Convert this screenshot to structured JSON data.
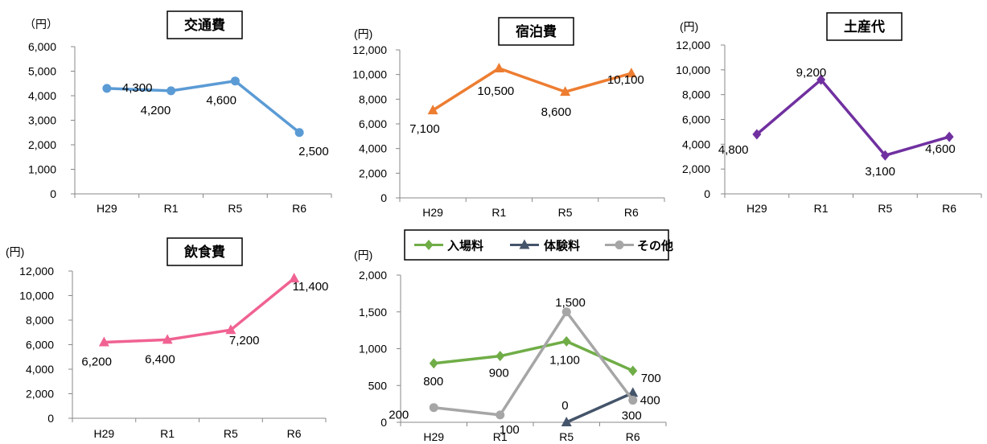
{
  "chart_data": [
    {
      "id": "transport",
      "type": "line",
      "title": "交通費",
      "unit": "（円）",
      "categories": [
        "H29",
        "R1",
        "R5",
        "R6"
      ],
      "series": [
        {
          "values": [
            4300,
            4200,
            4600,
            2500
          ],
          "labels": [
            "4,300",
            "4,200",
            "4,600",
            "2,500"
          ],
          "color": "#5b9bd5",
          "marker": "circle"
        }
      ],
      "ylim": [
        0,
        6000
      ],
      "yticks": [
        "0",
        "1,000",
        "2,000",
        "3,000",
        "4,000",
        "5,000",
        "6,000"
      ],
      "grid": false
    },
    {
      "id": "lodging",
      "type": "line",
      "title": "宿泊費",
      "unit": "(円)",
      "categories": [
        "H29",
        "R1",
        "R5",
        "R6"
      ],
      "series": [
        {
          "values": [
            7100,
            10500,
            8600,
            10100
          ],
          "labels": [
            "7,100",
            "10,500",
            "8,600",
            "10,100"
          ],
          "color": "#ed7d31",
          "marker": "triangle"
        }
      ],
      "ylim": [
        0,
        12000
      ],
      "yticks": [
        "0",
        "2,000",
        "4,000",
        "6,000",
        "8,000",
        "10,000",
        "12,000"
      ],
      "grid": false
    },
    {
      "id": "souvenir",
      "type": "line",
      "title": "土産代",
      "unit": "(円)",
      "categories": [
        "H29",
        "R1",
        "R5",
        "R6"
      ],
      "series": [
        {
          "values": [
            4800,
            9200,
            3100,
            4600
          ],
          "labels": [
            "4,800",
            "9,200",
            "3,100",
            "4,600"
          ],
          "color": "#7030a0",
          "marker": "diamond"
        }
      ],
      "ylim": [
        0,
        12000
      ],
      "yticks": [
        "0",
        "2,000",
        "4,000",
        "6,000",
        "8,000",
        "10,000",
        "12,000"
      ],
      "grid": false
    },
    {
      "id": "food",
      "type": "line",
      "title": "飲食費",
      "unit": "(円)",
      "categories": [
        "H29",
        "R1",
        "R5",
        "R6"
      ],
      "series": [
        {
          "values": [
            6200,
            6400,
            7200,
            11400
          ],
          "labels": [
            "6,200",
            "6,400",
            "7,200",
            "11,400"
          ],
          "color": "#f06292",
          "marker": "triangle"
        }
      ],
      "ylim": [
        0,
        12000
      ],
      "yticks": [
        "0",
        "2,000",
        "4,000",
        "6,000",
        "8,000",
        "10,000",
        "12,000"
      ],
      "grid": false
    },
    {
      "id": "other",
      "type": "line",
      "title": "",
      "unit": "(円)",
      "categories": [
        "H29",
        "R1",
        "R5",
        "R6"
      ],
      "series": [
        {
          "name": "入場料",
          "values": [
            800,
            900,
            1100,
            700
          ],
          "labels": [
            "800",
            "900",
            "1,100",
            "700"
          ],
          "color": "#70ad47",
          "marker": "diamond"
        },
        {
          "name": "体験料",
          "values": [
            null,
            null,
            0,
            400
          ],
          "labels": [
            null,
            null,
            "0",
            "400"
          ],
          "color": "#44546a",
          "marker": "triangle"
        },
        {
          "name": "その他",
          "values": [
            200,
            100,
            1500,
            300
          ],
          "labels": [
            "200",
            "100",
            "1,500",
            "300"
          ],
          "color": "#a6a6a6",
          "marker": "circle"
        }
      ],
      "ylim": [
        0,
        2000
      ],
      "yticks": [
        "0",
        "500",
        "1,000",
        "1,500",
        "2,000"
      ],
      "legend": "top",
      "grid": false
    }
  ]
}
